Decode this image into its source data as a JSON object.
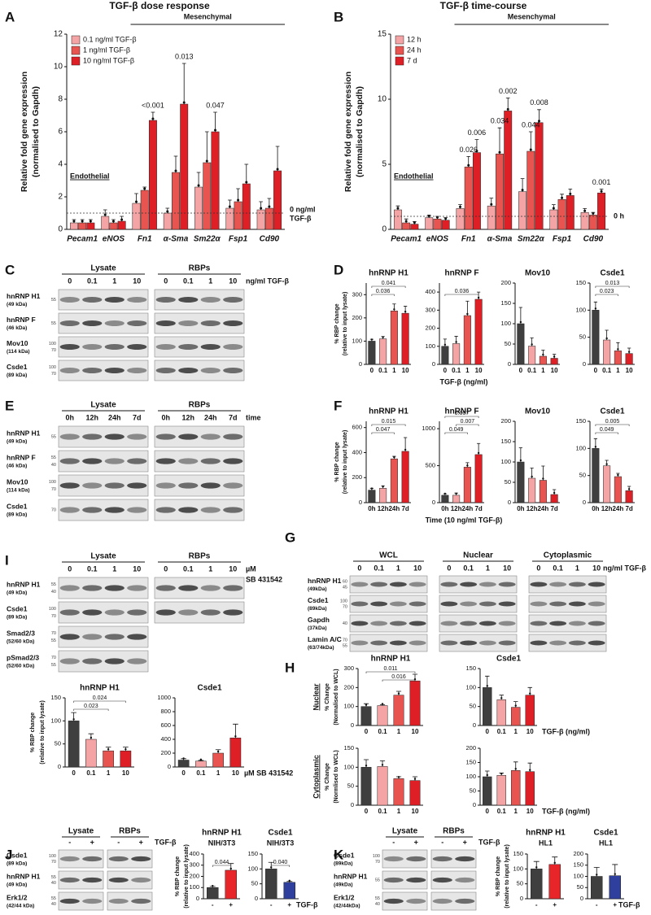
{
  "panel_labels": [
    "A",
    "B",
    "C",
    "D",
    "E",
    "F",
    "G",
    "H",
    "I",
    "J",
    "K"
  ],
  "chart_data": [
    {
      "type": "bar",
      "title": "TGF-β dose response",
      "categories": [
        "Pecam1",
        "eNOS",
        "Fn1",
        "α-Sma",
        "Sm22α",
        "Fsp1",
        "Cd90"
      ],
      "series": [
        {
          "name": "0.1 ng/ml TGF-β",
          "color": "#f4a4a4",
          "values": [
            0.4,
            0.8,
            1.6,
            1.0,
            2.6,
            1.3,
            1.2
          ],
          "errors": [
            0.2,
            0.4,
            0.6,
            0.3,
            0.9,
            0.5,
            0.5
          ]
        },
        {
          "name": "1 ng/ml TGF-β",
          "color": "#e8544f",
          "values": [
            0.4,
            0.4,
            2.4,
            3.5,
            4.1,
            1.7,
            1.3
          ],
          "errors": [
            0.2,
            0.2,
            0.2,
            1.0,
            1.9,
            0.8,
            0.6
          ]
        },
        {
          "name": "10 ng/ml TGF-β",
          "color": "#df1f26",
          "values": [
            0.4,
            0.5,
            6.7,
            7.7,
            6.0,
            2.8,
            3.6
          ],
          "errors": [
            0.2,
            0.3,
            0.5,
            2.5,
            1.2,
            1.2,
            1.5
          ]
        }
      ],
      "ylim": [
        0,
        12
      ],
      "yticks": [
        0,
        2,
        4,
        6,
        8,
        10,
        12
      ],
      "ylabel": [
        "Relative fold gene expression",
        "(normalised to Gapdh)"
      ],
      "annotations": [
        "<0.001",
        "0.013",
        "0.047"
      ],
      "group_labels": [
        "Endothelial",
        "Mesenchymal"
      ],
      "reference": {
        "value": 1,
        "label": [
          "0 ng/ml",
          "TGF-β"
        ]
      }
    },
    {
      "type": "bar",
      "title": "TGF-β time-course",
      "categories": [
        "Pecam1",
        "eNOS",
        "Fn1",
        "α-Sma",
        "Sm22α",
        "Fsp1",
        "Cd90"
      ],
      "series": [
        {
          "name": "12 h",
          "color": "#f4a4a4",
          "values": [
            1.5,
            0.9,
            1.6,
            1.8,
            2.9,
            1.5,
            1.3
          ],
          "errors": [
            0.3,
            0.2,
            0.3,
            0.6,
            1.0,
            0.4,
            0.3
          ]
        },
        {
          "name": "24 h",
          "color": "#e8544f",
          "values": [
            0.5,
            0.8,
            4.8,
            5.8,
            6.0,
            2.3,
            1.1
          ],
          "errors": [
            0.3,
            0.2,
            0.8,
            2.0,
            1.5,
            0.4,
            0.2
          ]
        },
        {
          "name": "7 d",
          "color": "#df1f26",
          "values": [
            0.4,
            0.7,
            5.9,
            9.1,
            8.2,
            2.6,
            2.8
          ],
          "errors": [
            0.2,
            0.2,
            1.0,
            1.0,
            1.0,
            0.5,
            0.3
          ]
        }
      ],
      "ylim": [
        0,
        15
      ],
      "yticks": [
        0,
        5,
        10,
        15
      ],
      "ylabel": [
        "Relative fold gene expression",
        "(normalised to Gapdh)"
      ],
      "annotations": [
        "0.026",
        "0.006",
        "0.034",
        "0.002",
        "0.044",
        "0.008",
        "0.001"
      ],
      "group_labels": [
        "Endothelial",
        "Mesenchymal"
      ],
      "reference": {
        "value": 1,
        "label": [
          "0 h"
        ]
      }
    },
    {
      "type": "bar",
      "title": "hnRNP H1",
      "categories": [
        "0",
        "0.1",
        "1",
        "10"
      ],
      "values": [
        100,
        110,
        230,
        220
      ],
      "errors": [
        8,
        10,
        30,
        30
      ],
      "colors": [
        "#3f3f3f",
        "#f4a4a4",
        "#e8544f",
        "#df1f26"
      ],
      "ylim": [
        0,
        350
      ],
      "yticks": [
        0,
        100,
        200,
        300
      ],
      "ylabel": [
        "% RBP change",
        "(relative to input lysate)"
      ],
      "annotations": [
        "0.041",
        "0.036"
      ]
    },
    {
      "type": "bar",
      "title": "hnRNP F",
      "categories": [
        "0",
        "0.1",
        "1",
        "10"
      ],
      "values": [
        100,
        115,
        270,
        360
      ],
      "errors": [
        40,
        40,
        80,
        40
      ],
      "colors": [
        "#3f3f3f",
        "#f4a4a4",
        "#e8544f",
        "#df1f26"
      ],
      "ylim": [
        0,
        450
      ],
      "yticks": [
        0,
        100,
        200,
        300,
        400
      ],
      "annotations": [
        "0.036"
      ],
      "xlabel": "TGF-β (ng/ml)"
    },
    {
      "type": "bar",
      "title": "Mov10",
      "categories": [
        "0",
        "0.1",
        "1",
        "10"
      ],
      "values": [
        100,
        45,
        20,
        15
      ],
      "errors": [
        40,
        20,
        15,
        10
      ],
      "colors": [
        "#3f3f3f",
        "#f4a4a4",
        "#e8544f",
        "#df1f26"
      ],
      "ylim": [
        0,
        200
      ],
      "yticks": [
        0,
        50,
        100,
        150,
        200
      ]
    },
    {
      "type": "bar",
      "title": "Csde1",
      "categories": [
        "0",
        "0.1",
        "1",
        "10"
      ],
      "values": [
        100,
        45,
        25,
        20
      ],
      "errors": [
        15,
        18,
        15,
        10
      ],
      "colors": [
        "#3f3f3f",
        "#f4a4a4",
        "#e8544f",
        "#df1f26"
      ],
      "ylim": [
        0,
        150
      ],
      "yticks": [
        0,
        50,
        100,
        150
      ],
      "annotations": [
        "0.013",
        "0.023"
      ]
    },
    {
      "type": "bar",
      "title": "hnRNP H1",
      "categories": [
        "0h",
        "12h",
        "24h",
        "7d"
      ],
      "values": [
        100,
        115,
        350,
        410
      ],
      "errors": [
        15,
        20,
        20,
        110
      ],
      "colors": [
        "#3f3f3f",
        "#f4a4a4",
        "#e8544f",
        "#df1f26"
      ],
      "ylim": [
        0,
        650
      ],
      "yticks": [
        0,
        200,
        400,
        600
      ],
      "ylabel": [
        "% RBP change",
        "(relative to input lysate)"
      ],
      "annotations": [
        "0.015",
        "0.047"
      ]
    },
    {
      "type": "bar",
      "title": "hnRNP F",
      "categories": [
        "0h",
        "12h",
        "24h",
        "7d"
      ],
      "values": [
        100,
        100,
        480,
        650
      ],
      "errors": [
        20,
        30,
        60,
        150
      ],
      "colors": [
        "#3f3f3f",
        "#f4a4a4",
        "#e8544f",
        "#df1f26"
      ],
      "ylim": [
        0,
        1100
      ],
      "yticks": [
        0,
        500,
        1000
      ],
      "annotations": [
        "0.007",
        "0.049",
        "0.007"
      ],
      "xlabel": "Time (10 ng/ml TGF-β)"
    },
    {
      "type": "bar",
      "title": "Mov10",
      "categories": [
        "0h",
        "12h",
        "24h",
        "7d"
      ],
      "values": [
        100,
        60,
        55,
        20
      ],
      "errors": [
        35,
        25,
        35,
        12
      ],
      "colors": [
        "#3f3f3f",
        "#f4a4a4",
        "#e8544f",
        "#df1f26"
      ],
      "ylim": [
        0,
        200
      ],
      "yticks": [
        0,
        50,
        100,
        150,
        200
      ]
    },
    {
      "type": "bar",
      "title": "Csde1",
      "categories": [
        "0h",
        "12h",
        "24h",
        "7d"
      ],
      "values": [
        100,
        68,
        48,
        22
      ],
      "errors": [
        18,
        10,
        6,
        8
      ],
      "colors": [
        "#3f3f3f",
        "#f4a4a4",
        "#e8544f",
        "#df1f26"
      ],
      "ylim": [
        0,
        150
      ],
      "yticks": [
        0,
        50,
        100,
        150
      ],
      "annotations": [
        "0.005",
        "0.049"
      ]
    },
    {
      "type": "bar",
      "title": "hnRNP H1",
      "row_label": "Nuclear",
      "categories": [
        "0",
        "0.1",
        "1",
        "10"
      ],
      "values": [
        100,
        105,
        160,
        235
      ],
      "errors": [
        15,
        5,
        20,
        35
      ],
      "colors": [
        "#3f3f3f",
        "#f4a4a4",
        "#e8544f",
        "#df1f26"
      ],
      "ylim": [
        0,
        300
      ],
      "yticks": [
        0,
        100,
        200,
        300
      ],
      "ylabel": [
        "% Change",
        "(Normalised to WCL)"
      ],
      "annotations": [
        "0.011",
        "0.016"
      ]
    },
    {
      "type": "bar",
      "title": "Csde1",
      "categories": [
        "0",
        "0.1",
        "1",
        "10"
      ],
      "values": [
        100,
        68,
        48,
        80
      ],
      "errors": [
        30,
        12,
        15,
        20
      ],
      "colors": [
        "#3f3f3f",
        "#f4a4a4",
        "#e8544f",
        "#df1f26"
      ],
      "ylim": [
        0,
        150
      ],
      "yticks": [
        0,
        50,
        100,
        150
      ],
      "xlabel": "TGF-β (ng/ml)"
    },
    {
      "type": "bar",
      "row_label": "Cytoplasmic",
      "categories": [
        "0",
        "0.1",
        "1",
        "10"
      ],
      "values": [
        100,
        102,
        70,
        65
      ],
      "errors": [
        20,
        15,
        5,
        10
      ],
      "colors": [
        "#3f3f3f",
        "#f4a4a4",
        "#e8544f",
        "#df1f26"
      ],
      "ylim": [
        0,
        150
      ],
      "yticks": [
        0,
        50,
        100,
        150
      ],
      "ylabel": [
        "% Change",
        "(Normlised to WCL)"
      ]
    },
    {
      "type": "bar",
      "categories": [
        "0",
        "0.1",
        "1",
        "10"
      ],
      "values": [
        100,
        105,
        122,
        118
      ],
      "errors": [
        20,
        8,
        30,
        30
      ],
      "colors": [
        "#3f3f3f",
        "#f4a4a4",
        "#e8544f",
        "#df1f26"
      ],
      "ylim": [
        0,
        200
      ],
      "yticks": [
        0,
        50,
        100,
        150,
        200
      ],
      "xlabel": "TGF-β (ng/ml)"
    },
    {
      "type": "bar",
      "title": "hnRNP H1",
      "categories": [
        "0",
        "0.1",
        "1",
        "10"
      ],
      "values": [
        100,
        60,
        35,
        35
      ],
      "errors": [
        18,
        12,
        8,
        8
      ],
      "colors": [
        "#3f3f3f",
        "#f4a4a4",
        "#e8544f",
        "#df1f26"
      ],
      "ylim": [
        0,
        150
      ],
      "yticks": [
        0,
        50,
        100,
        150
      ],
      "ylabel": [
        "% RBP change",
        "(relative to input lysate)"
      ],
      "annotations": [
        "0.024",
        "0.023"
      ]
    },
    {
      "type": "bar",
      "title": "Csde1",
      "categories": [
        "0",
        "0.1",
        "1",
        "10"
      ],
      "values": [
        100,
        85,
        200,
        420
      ],
      "errors": [
        20,
        10,
        50,
        200
      ],
      "colors": [
        "#3f3f3f",
        "#f4a4a4",
        "#e8544f",
        "#df1f26"
      ],
      "ylim": [
        0,
        1000
      ],
      "yticks": [
        0,
        200,
        400,
        600,
        800,
        1000
      ],
      "xlabel": "µM SB 431542"
    },
    {
      "type": "bar",
      "title": "hnRNP H1",
      "subtitle": "NIH/3T3",
      "categories": [
        "-",
        "+"
      ],
      "values": [
        100,
        255
      ],
      "errors": [
        10,
        60
      ],
      "colors": [
        "#3f3f3f",
        "#e8262a"
      ],
      "ylim": [
        0,
        400
      ],
      "yticks": [
        0,
        100,
        200,
        300,
        400
      ],
      "ylabel": [
        "% RBP change",
        "(relative to input lysate)"
      ],
      "annotations": [
        "0.044"
      ]
    },
    {
      "type": "bar",
      "title": "Csde1",
      "subtitle": "NIH/3T3",
      "categories": [
        "-",
        "+"
      ],
      "values": [
        100,
        55
      ],
      "errors": [
        22,
        3
      ],
      "colors": [
        "#3f3f3f",
        "#2e3f9e"
      ],
      "ylim": [
        0,
        150
      ],
      "yticks": [
        0,
        50,
        100,
        150
      ],
      "annotations": [
        "0.040"
      ],
      "xlabel": "TGF-β"
    },
    {
      "type": "bar",
      "title": "hnRNP H1",
      "subtitle": "HL1",
      "categories": [
        "-",
        "+"
      ],
      "values": [
        100,
        115
      ],
      "errors": [
        25,
        25
      ],
      "colors": [
        "#3f3f3f",
        "#e8262a"
      ],
      "ylim": [
        0,
        150
      ],
      "yticks": [
        0,
        50,
        100,
        150
      ],
      "ylabel": [
        "% RBP change",
        "(relative to input lysate)"
      ]
    },
    {
      "type": "bar",
      "title": "Csde1",
      "subtitle": "HL1",
      "categories": [
        "-",
        "+"
      ],
      "values": [
        100,
        103
      ],
      "errors": [
        40,
        50
      ],
      "colors": [
        "#3f3f3f",
        "#2e3f9e"
      ],
      "ylim": [
        0,
        200
      ],
      "yticks": [
        0,
        50,
        100,
        150,
        200
      ],
      "xlabel": "TGF-β"
    }
  ],
  "blots": [
    {
      "headers": [
        "Lysate",
        "RBPs"
      ],
      "lanes": [
        "0",
        "0.1",
        "1",
        "10"
      ],
      "suffix": [
        "ng/ml TGF-β"
      ],
      "rows": [
        {
          "label": "hnRNP H1",
          "sub": "(49 kDa)",
          "markers": [
            "55"
          ]
        },
        {
          "label": "hnRNP F",
          "sub": "(46 kDa)",
          "markers": [
            "55"
          ]
        },
        {
          "label": "Mov10",
          "sub": "(114 kDa)",
          "markers": [
            "100",
            "70"
          ]
        },
        {
          "label": "Csde1",
          "sub": "(89 kDa)",
          "markers": [
            "100",
            "70"
          ]
        }
      ]
    },
    {
      "headers": [
        "Lysate",
        "RBPs"
      ],
      "lanes": [
        "0h",
        "12h",
        "24h",
        "7d"
      ],
      "suffix": [
        "time"
      ],
      "rows": [
        {
          "label": "hnRNP H1",
          "sub": "(49 kDa)",
          "markers": [
            "55"
          ]
        },
        {
          "label": "hnRNP F",
          "sub": "(46 kDa)",
          "markers": [
            "55",
            "40"
          ]
        },
        {
          "label": "Mov10",
          "sub": "(114 kDa)",
          "markers": [
            "100",
            "70"
          ]
        },
        {
          "label": "Csde1",
          "sub": "(89 kDa)",
          "markers": [
            "70"
          ]
        }
      ]
    },
    {
      "headers": [
        "WCL",
        "Nuclear",
        "Cytoplasmic"
      ],
      "lanes": [
        "0",
        "0.1",
        "1",
        "10"
      ],
      "suffix": [
        "ng/ml TGF-β"
      ],
      "rows": [
        {
          "label": "hnRNP H1",
          "sub": "(49kDa)",
          "markers": [
            "60",
            "45"
          ]
        },
        {
          "label": "Csde1",
          "sub": "(89kDa)",
          "markers": [
            "100",
            "70"
          ]
        },
        {
          "label": "Gapdh",
          "sub": "(37kDa)",
          "markers": [
            "40"
          ]
        },
        {
          "label": "Lamin A/C",
          "sub": "(63/74kDa)",
          "markers": [
            "70",
            "55"
          ]
        }
      ]
    },
    {
      "headers": [
        "Lysate",
        "RBPs"
      ],
      "lanes": [
        "0",
        "0.1",
        "1",
        "10"
      ],
      "suffix": [
        "µM",
        "SB 431542"
      ],
      "rows": [
        {
          "label": "hnRNP H1",
          "sub": "(49 kDa)",
          "markers": [
            "55",
            "40"
          ]
        },
        {
          "label": "Csde1",
          "sub": "(89 kDa)",
          "markers": [
            "100",
            "70"
          ]
        },
        {
          "label": "Smad2/3",
          "sub": "(52/60 kDa)",
          "markers": [
            "70",
            "55"
          ]
        },
        {
          "label": "pSmad2/3",
          "sub": "(52/60 kDa)",
          "markers": [
            "70",
            "55"
          ]
        }
      ]
    },
    {
      "headers": [
        "Lysate",
        "RBPs"
      ],
      "lanes": [
        "-",
        "+"
      ],
      "suffix": [
        "TGF-β"
      ],
      "rows": [
        {
          "label": "Csde1",
          "sub": "(89 kDa)",
          "markers": [
            "100",
            "70"
          ]
        },
        {
          "label": "hnRNP H1",
          "sub": "(49 kDa)",
          "markers": [
            "55",
            "40"
          ]
        },
        {
          "label": "Erk1/2",
          "sub": "(42/44 kDa)",
          "markers": [
            "55",
            "40"
          ]
        }
      ]
    },
    {
      "headers": [
        "Lysate",
        "RBPs"
      ],
      "lanes": [
        "-",
        "+"
      ],
      "suffix": [
        "TGF-β"
      ],
      "rows": [
        {
          "label": "Csde1",
          "sub": "(89kDa)",
          "markers": [
            "100",
            "70"
          ]
        },
        {
          "label": "hnRNP H1",
          "sub": "(49kDa)",
          "markers": [
            "55"
          ]
        },
        {
          "label": "Erk1/2",
          "sub": "(42/44kDa)",
          "markers": [
            "55",
            "40"
          ]
        }
      ]
    }
  ]
}
